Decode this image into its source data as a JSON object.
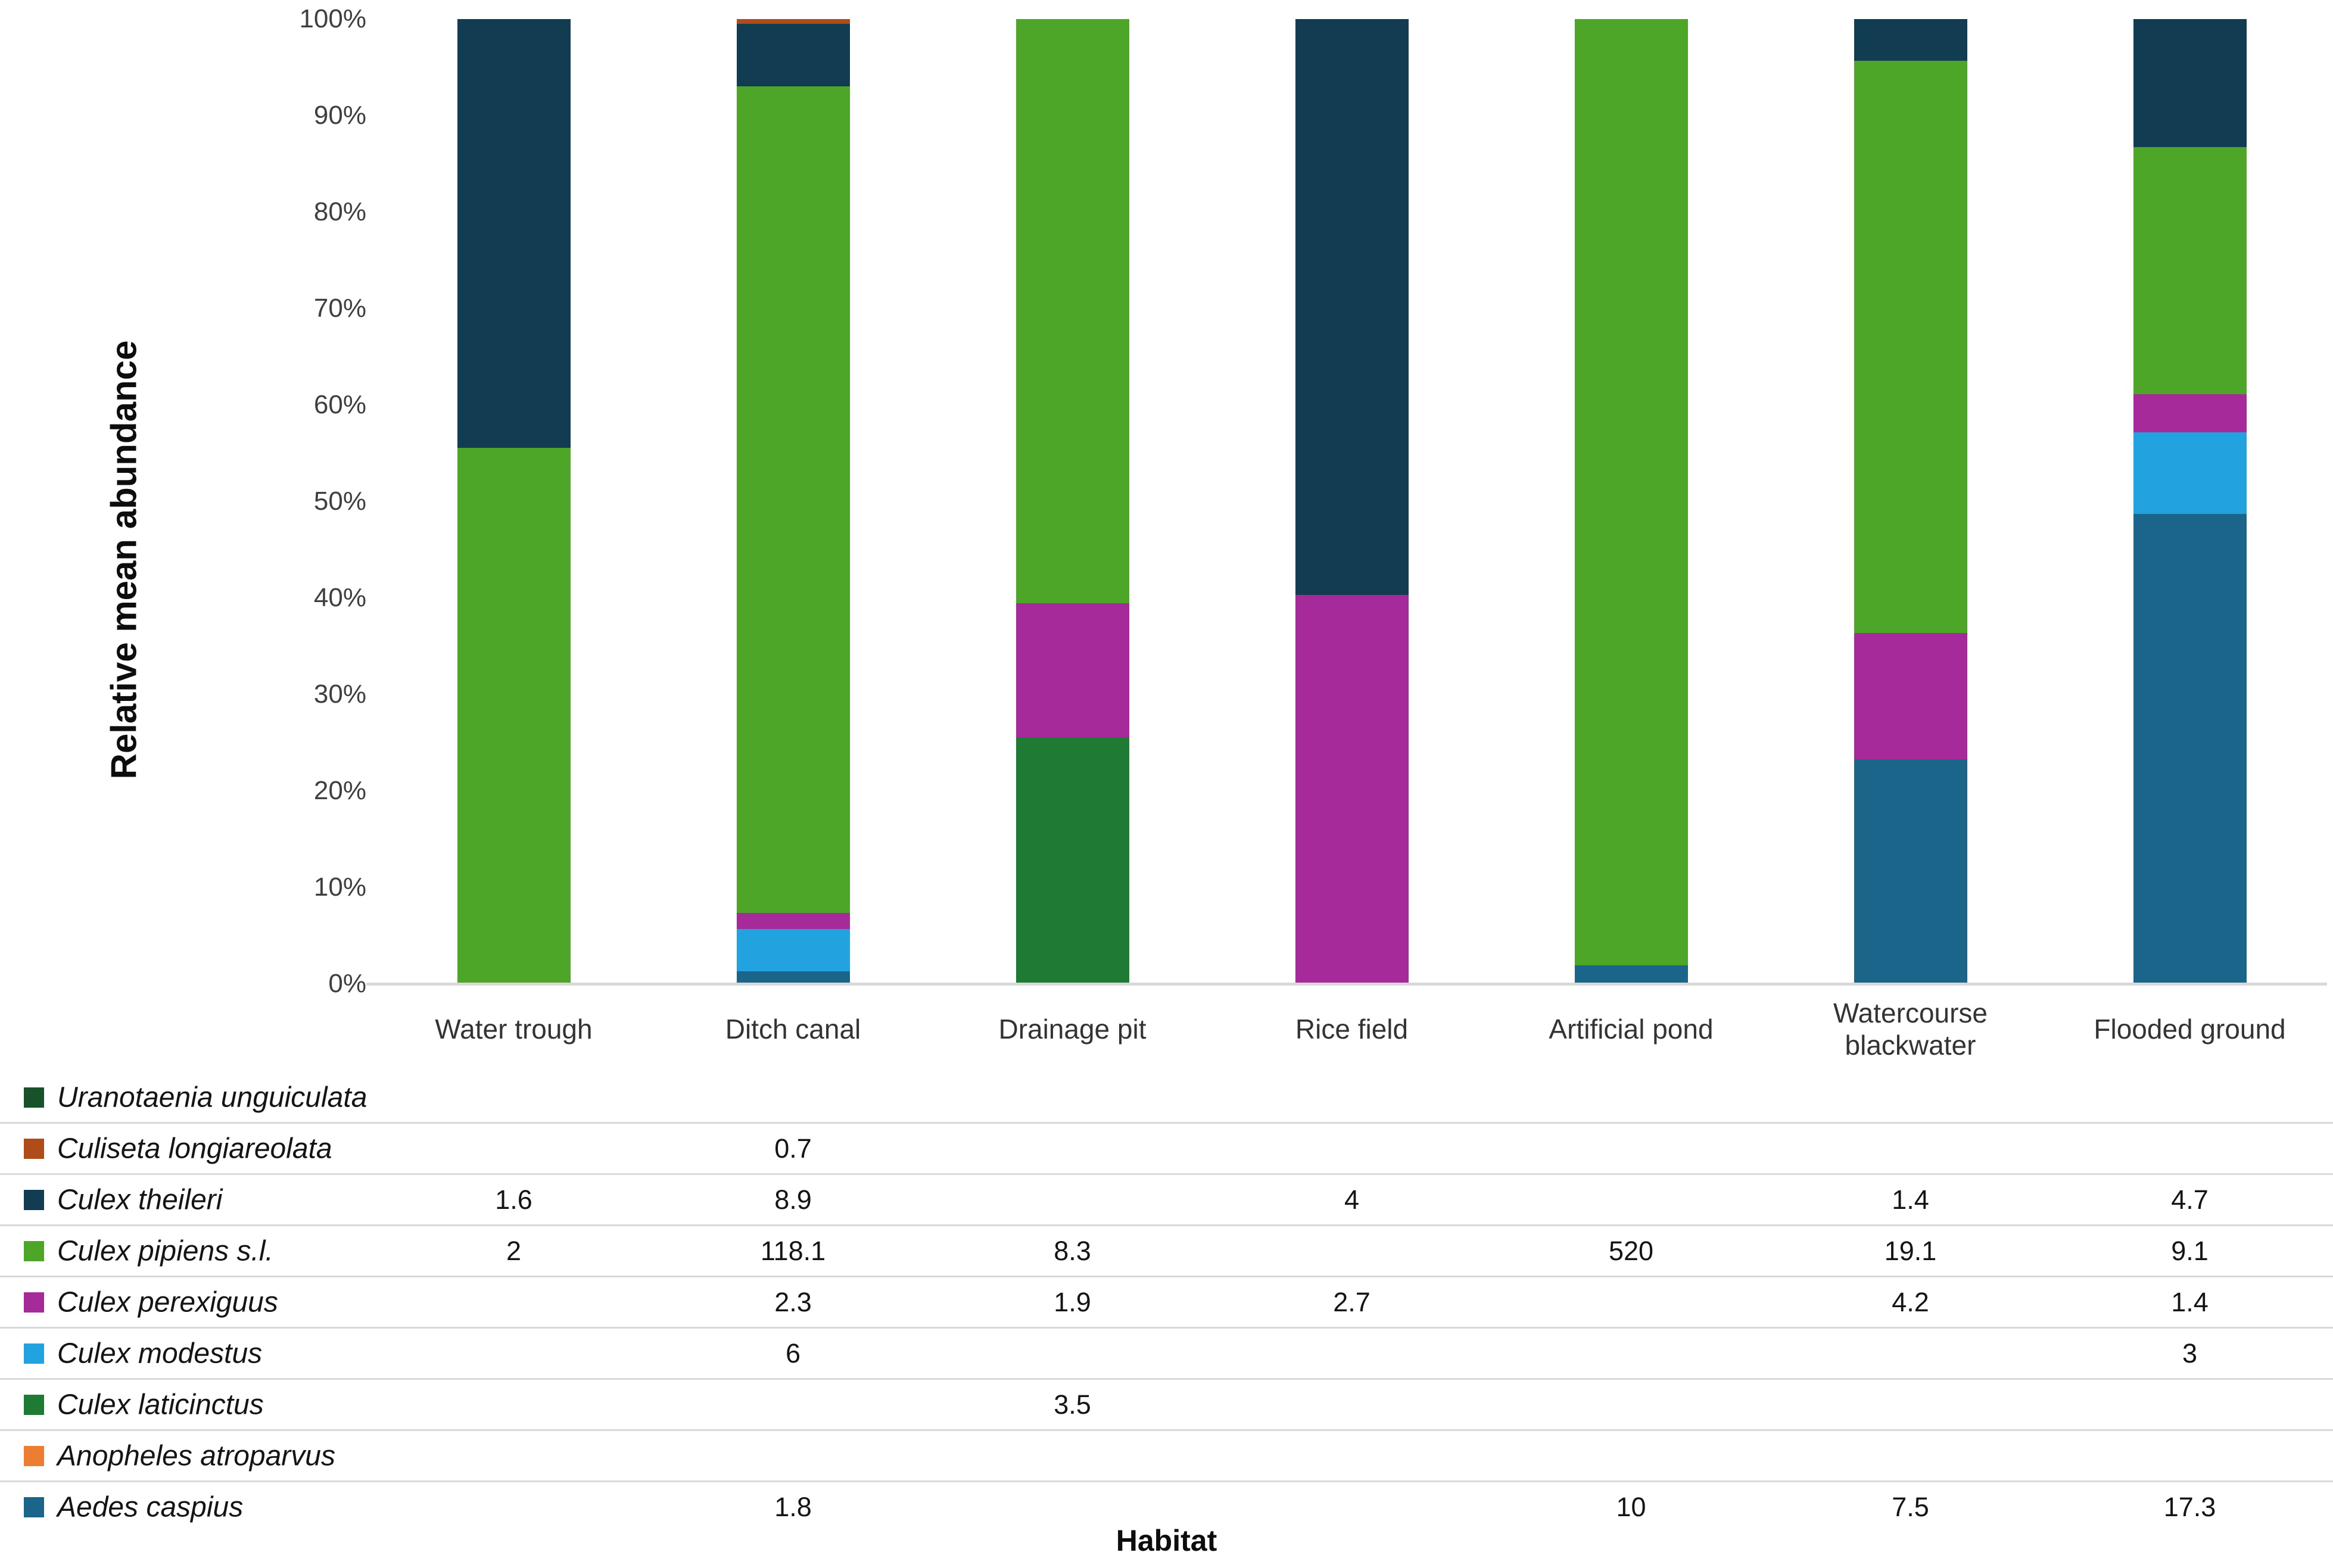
{
  "chart_data": {
    "type": "bar",
    "variant": "100%-stacked-column",
    "title": "",
    "ylabel": "Relative mean abundance",
    "xlabel": "Habitat",
    "ylim": [
      0,
      100
    ],
    "grid": false,
    "legend_position": "bottom-table",
    "y_ticks": [
      "100%",
      "90%",
      "80%",
      "70%",
      "60%",
      "50%",
      "40%",
      "30%",
      "20%",
      "10%",
      "0%"
    ],
    "categories": [
      "Water trough",
      "Ditch canal",
      "Drainage pit",
      "Rice field",
      "Artificial pond",
      "Watercourse\nblackwater",
      "Flooded ground"
    ],
    "series": [
      {
        "name": "Uranotaenia unguiculata",
        "color": "#18522b",
        "values": [
          null,
          null,
          null,
          null,
          null,
          null,
          null
        ]
      },
      {
        "name": "Culiseta longiareolata",
        "color": "#b04c19",
        "values": [
          null,
          0.7,
          null,
          null,
          null,
          null,
          null
        ]
      },
      {
        "name": "Culex theileri",
        "color": "#123c52",
        "values": [
          1.6,
          8.9,
          null,
          4,
          null,
          1.4,
          4.7
        ]
      },
      {
        "name": "Culex pipiens s.l.",
        "color": "#4ea629",
        "values": [
          2,
          118.1,
          8.3,
          null,
          520,
          19.1,
          9.1
        ]
      },
      {
        "name": "Culex perexiguus",
        "color": "#a62a99",
        "values": [
          null,
          2.3,
          1.9,
          2.7,
          null,
          4.2,
          1.4
        ]
      },
      {
        "name": "Culex modestus",
        "color": "#22a2de",
        "values": [
          null,
          6,
          null,
          null,
          null,
          null,
          3
        ]
      },
      {
        "name": "Culex laticinctus",
        "color": "#1f7a34",
        "values": [
          null,
          null,
          3.5,
          null,
          null,
          null,
          null
        ]
      },
      {
        "name": "Anopheles atroparvus",
        "color": "#ed7d31",
        "values": [
          null,
          null,
          null,
          null,
          null,
          null,
          null
        ]
      },
      {
        "name": "Aedes caspius",
        "color": "#1a6589",
        "values": [
          null,
          1.8,
          null,
          null,
          10,
          7.5,
          17.3
        ]
      }
    ],
    "colors": {
      "axis_line": "#d9d9d9",
      "separator_line": "#d9d9d9",
      "tick_text": "#3f3f3f",
      "label_text": "#141414"
    }
  }
}
